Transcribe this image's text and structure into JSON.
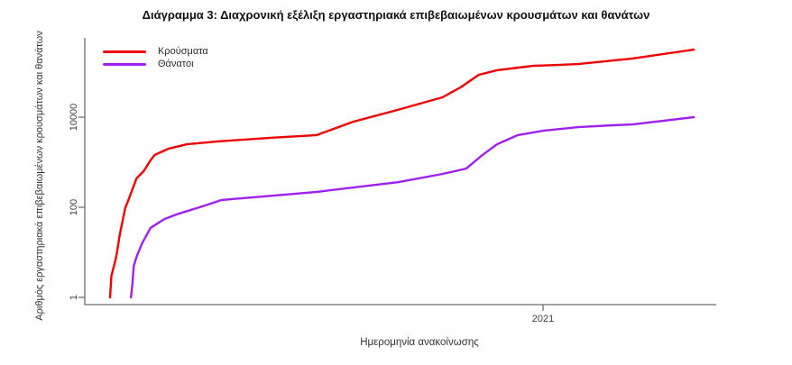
{
  "page": {
    "background_color": "#ffffff"
  },
  "chart_data": {
    "type": "line",
    "title": "Διάγραμμα 3: Διαχρονική εξέλιξη εργαστηριακά επιβεβαιωμένων κρουσμάτων και θανάτων",
    "xlabel": "Ημερομηνία ανακοίνωσης",
    "ylabel": "Αριθμός εργαστηριακά επιβεβαιωμένων κρουσμάτων και θανάτων",
    "y_scale": "log10",
    "ylim": [
      1,
      550000
    ],
    "grid": false,
    "legend_position": "top-left",
    "axis_color": "#6e6e6e",
    "tick_text_color": "#3d3d3d",
    "y_ticks": [
      {
        "label": "1",
        "value": 1
      },
      {
        "label": "100",
        "value": 100
      },
      {
        "label": "10000",
        "value": 10000
      }
    ],
    "x_ticks": [
      {
        "label": "2021",
        "date": "2021-01-01"
      }
    ],
    "x_range": [
      "2020-02-09",
      "2021-05-04"
    ],
    "series": [
      {
        "key": "cases",
        "name": "Κρούσματα",
        "color": "#ee0000",
        "points": [
          [
            "2020-02-26",
            1
          ],
          [
            "2020-02-27",
            3
          ],
          [
            "2020-02-28",
            4
          ],
          [
            "2020-03-01",
            7
          ],
          [
            "2020-03-02",
            10
          ],
          [
            "2020-03-04",
            25
          ],
          [
            "2020-03-06",
            50
          ],
          [
            "2020-03-08",
            100
          ],
          [
            "2020-03-10",
            140
          ],
          [
            "2020-03-13",
            250
          ],
          [
            "2020-03-16",
            440
          ],
          [
            "2020-03-21",
            630
          ],
          [
            "2020-03-26",
            1100
          ],
          [
            "2020-03-29",
            1450
          ],
          [
            "2020-04-08",
            2000
          ],
          [
            "2020-04-21",
            2500
          ],
          [
            "2020-05-13",
            2900
          ],
          [
            "2020-06-21",
            3500
          ],
          [
            "2020-07-23",
            4000
          ],
          [
            "2020-08-18",
            7900
          ],
          [
            "2020-09-19",
            14500
          ],
          [
            "2020-10-21",
            27500
          ],
          [
            "2020-11-03",
            46000
          ],
          [
            "2020-11-16",
            87000
          ],
          [
            "2020-11-29",
            110000
          ],
          [
            "2020-12-25",
            138000
          ],
          [
            "2021-01-01",
            140000
          ],
          [
            "2021-01-26",
            151000
          ],
          [
            "2021-03-06",
            200000
          ],
          [
            "2021-04-19",
            316000
          ]
        ]
      },
      {
        "key": "deaths",
        "name": "Θάνατοι",
        "color": "#a020f0",
        "points": [
          [
            "2020-03-12",
            1
          ],
          [
            "2020-03-13",
            2
          ],
          [
            "2020-03-14",
            5
          ],
          [
            "2020-03-16",
            8
          ],
          [
            "2020-03-20",
            16
          ],
          [
            "2020-03-26",
            35
          ],
          [
            "2020-04-05",
            55
          ],
          [
            "2020-04-14",
            70
          ],
          [
            "2020-04-30",
            100
          ],
          [
            "2020-05-16",
            145
          ],
          [
            "2020-06-21",
            180
          ],
          [
            "2020-07-23",
            220
          ],
          [
            "2020-08-24",
            290
          ],
          [
            "2020-09-19",
            360
          ],
          [
            "2020-10-21",
            550
          ],
          [
            "2020-11-07",
            720
          ],
          [
            "2020-11-18",
            1400
          ],
          [
            "2020-11-29",
            2500
          ],
          [
            "2020-12-14",
            4000
          ],
          [
            "2021-01-01",
            5000
          ],
          [
            "2021-01-26",
            6000
          ],
          [
            "2021-02-20",
            6600
          ],
          [
            "2021-03-06",
            6900
          ],
          [
            "2021-04-19",
            10000
          ]
        ]
      }
    ]
  }
}
